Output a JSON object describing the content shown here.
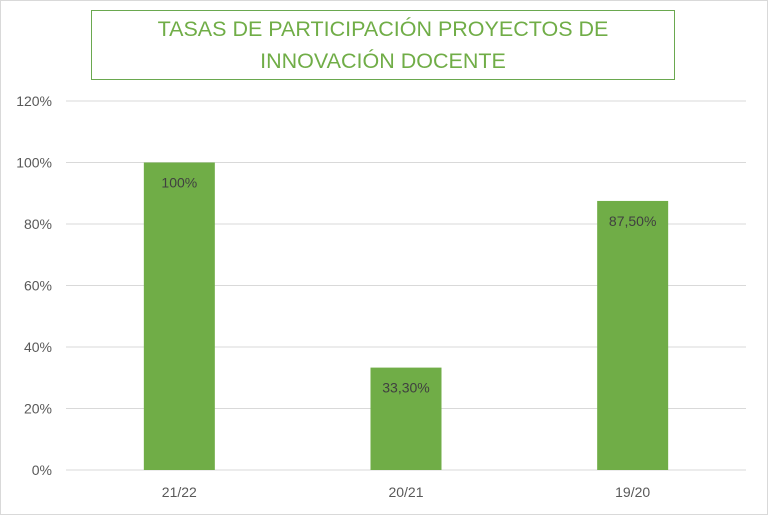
{
  "chart_data": {
    "type": "bar",
    "title": "TASAS DE PARTICIPACIÓN PROYECTOS DE INNOVACIÓN DOCENTE",
    "xlabel": "",
    "ylabel": "",
    "categories": [
      "21/22",
      "20/21",
      "19/20"
    ],
    "values": [
      100,
      33.3,
      87.5
    ],
    "data_labels": [
      "100%",
      "33,30%",
      "87,50%"
    ],
    "ylim": [
      0,
      120
    ],
    "y_ticks": [
      0,
      20,
      40,
      60,
      80,
      100,
      120
    ],
    "y_tick_labels": [
      "0%",
      "20%",
      "40%",
      "60%",
      "80%",
      "100%",
      "120%"
    ],
    "grid": true,
    "legend": "none",
    "colors": {
      "bar": "#70ad47",
      "title": "#70ad47",
      "grid": "#d9d9d9",
      "text": "#595959"
    }
  }
}
